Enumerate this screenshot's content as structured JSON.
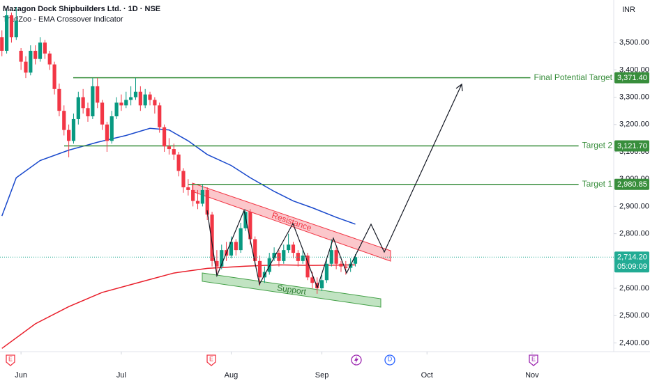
{
  "chart_data": {
    "type": "candlestick",
    "title": "Mazagon Dock Shipbuilders Ltd. · 1D · NSE",
    "subtitle": "TradZoo - EMA Crossover Indicator",
    "currency": "INR",
    "x": [
      -4,
      -3,
      -2,
      -1,
      0,
      1,
      2,
      3,
      4,
      5,
      6,
      7,
      8,
      9,
      10,
      11,
      12,
      13,
      14,
      15,
      16,
      17,
      18,
      19,
      20,
      21,
      22,
      23,
      24,
      25,
      26,
      27,
      28,
      29,
      30,
      31,
      32,
      33,
      34,
      35,
      36,
      37,
      38,
      39,
      40,
      41,
      42,
      43,
      44,
      45,
      46,
      47,
      48,
      49,
      50,
      51,
      52,
      53,
      54,
      55,
      56,
      57,
      58,
      59,
      60,
      61,
      62,
      63,
      64,
      65,
      66,
      67,
      68,
      69,
      70
    ],
    "open": [
      3520,
      3470,
      3600,
      3520,
      3470,
      3430,
      3390,
      3470,
      3440,
      3500,
      3460,
      3420,
      3330,
      3250,
      3180,
      3140,
      3220,
      3300,
      3260,
      3230,
      3340,
      3280,
      3200,
      3140,
      3230,
      3280,
      3270,
      3290,
      3300,
      3320,
      3270,
      3310,
      3290,
      3270,
      3190,
      3120,
      3110,
      3090,
      3030,
      2970,
      2960,
      2920,
      2910,
      2960,
      2870,
      2700,
      2680,
      2740,
      2720,
      2770,
      2740,
      2820,
      2880,
      2780,
      2700,
      2640,
      2660,
      2710,
      2730,
      2700,
      2740,
      2760,
      2730,
      2700,
      2720,
      2640,
      2620,
      2600,
      2630,
      2690,
      2740,
      2690,
      2680,
      2675,
      2690
    ],
    "high": [
      3545,
      3620,
      3610,
      3630,
      3480,
      3450,
      3490,
      3490,
      3520,
      3510,
      3470,
      3430,
      3350,
      3270,
      3200,
      3240,
      3320,
      3330,
      3280,
      3370,
      3370,
      3290,
      3210,
      3250,
      3300,
      3310,
      3320,
      3340,
      3370,
      3340,
      3330,
      3320,
      3300,
      3280,
      3200,
      3150,
      3130,
      3100,
      3040,
      3000,
      2980,
      2960,
      2980,
      2970,
      2880,
      2740,
      2760,
      2770,
      2790,
      2780,
      2840,
      2890,
      2890,
      2790,
      2720,
      2680,
      2730,
      2750,
      2740,
      2760,
      2800,
      2770,
      2740,
      2740,
      2730,
      2660,
      2640,
      2650,
      2710,
      2780,
      2750,
      2700,
      2700,
      2710,
      2725
    ],
    "low": [
      3450,
      3460,
      3500,
      3510,
      3400,
      3370,
      3380,
      3420,
      3430,
      3440,
      3400,
      3310,
      3230,
      3160,
      3080,
      3130,
      3200,
      3240,
      3210,
      3220,
      3260,
      3180,
      3100,
      3130,
      3220,
      3250,
      3260,
      3270,
      3290,
      3250,
      3260,
      3270,
      3240,
      3170,
      3100,
      3090,
      3070,
      3010,
      2950,
      2940,
      2900,
      2890,
      2900,
      2850,
      2680,
      2650,
      2670,
      2700,
      2710,
      2720,
      2730,
      2810,
      2760,
      2680,
      2610,
      2620,
      2650,
      2700,
      2680,
      2690,
      2730,
      2710,
      2680,
      2690,
      2630,
      2600,
      2580,
      2590,
      2620,
      2680,
      2670,
      2660,
      2650,
      2660,
      2680
    ],
    "close": [
      3470,
      3600,
      3520,
      3580,
      3430,
      3390,
      3470,
      3440,
      3500,
      3460,
      3420,
      3330,
      3250,
      3180,
      3140,
      3220,
      3300,
      3260,
      3230,
      3340,
      3280,
      3200,
      3140,
      3230,
      3280,
      3270,
      3290,
      3300,
      3320,
      3270,
      3310,
      3290,
      3270,
      3190,
      3120,
      3110,
      3090,
      3030,
      2970,
      2960,
      2920,
      2910,
      2960,
      2870,
      2700,
      2680,
      2740,
      2720,
      2770,
      2740,
      2820,
      2880,
      2780,
      2700,
      2640,
      2660,
      2710,
      2730,
      2700,
      2740,
      2760,
      2730,
      2700,
      2720,
      2640,
      2620,
      2600,
      2630,
      2690,
      2740,
      2690,
      2680,
      2675,
      2690,
      2714.2
    ],
    "up_color": "#089981",
    "down_color": "#f23645",
    "ema": [
      {
        "color": "#1848cc",
        "x": [
          -4,
          -1,
          4,
          10,
          16,
          22,
          27,
          31,
          35,
          39,
          44,
          48,
          53,
          57,
          61,
          66,
          70
        ],
        "values": [
          2865,
          3005,
          3068,
          3106,
          3135,
          3160,
          3186,
          3180,
          3140,
          3090,
          3050,
          3005,
          2955,
          2920,
          2895,
          2860,
          2835
        ]
      },
      {
        "color": "#e91e2a",
        "x": [
          -4,
          3,
          10,
          17,
          25,
          32,
          39,
          47,
          54,
          61,
          70
        ],
        "values": [
          2380,
          2470,
          2533,
          2585,
          2623,
          2656,
          2673,
          2681,
          2686,
          2684,
          2686
        ]
      }
    ],
    "levels": [
      {
        "name": "Final Potential Target",
        "value": 3371.4,
        "label": "3,371.40"
      },
      {
        "name": "Target 2",
        "value": 3121.7,
        "label": "3,121.70"
      },
      {
        "name": "Target 1",
        "value": 2980.85,
        "label": "2,980.85"
      }
    ],
    "level_color": "#388e3c",
    "last_price": {
      "value": 2714.2,
      "label": "2,714.20",
      "countdown": "05:09:09",
      "color": "#22ab94"
    },
    "annotations": [
      "Resistance",
      "Support"
    ],
    "events": [
      "E",
      "E",
      "D",
      "E"
    ],
    "xlim": [
      -4.4,
      124.1
    ],
    "xticks": [
      {
        "value": 0,
        "label": "Jun"
      },
      {
        "value": 21,
        "label": "Jul"
      },
      {
        "value": 44,
        "label": "Aug"
      },
      {
        "value": 63,
        "label": "Sep"
      },
      {
        "value": 85,
        "label": "Oct"
      },
      {
        "value": 107,
        "label": "Nov"
      }
    ],
    "ylim": [
      2368,
      3656
    ],
    "yticks": [
      {
        "value": 2400,
        "label": "2,400.00"
      },
      {
        "value": 2500,
        "label": "2,500.00"
      },
      {
        "value": 2600,
        "label": "2,600.00"
      },
      {
        "value": 2700,
        "label": "2,700.00"
      },
      {
        "value": 2800,
        "label": "2,800.00"
      },
      {
        "value": 2900,
        "label": "2,900.00"
      },
      {
        "value": 3000,
        "label": "3,000.00"
      },
      {
        "value": 3100,
        "label": "3,100.00"
      },
      {
        "value": 3200,
        "label": "3,200.00"
      },
      {
        "value": 3300,
        "label": "3,300.00"
      },
      {
        "value": 3400,
        "label": "3,400.00"
      },
      {
        "value": 3500,
        "label": "3,500.00"
      }
    ]
  }
}
